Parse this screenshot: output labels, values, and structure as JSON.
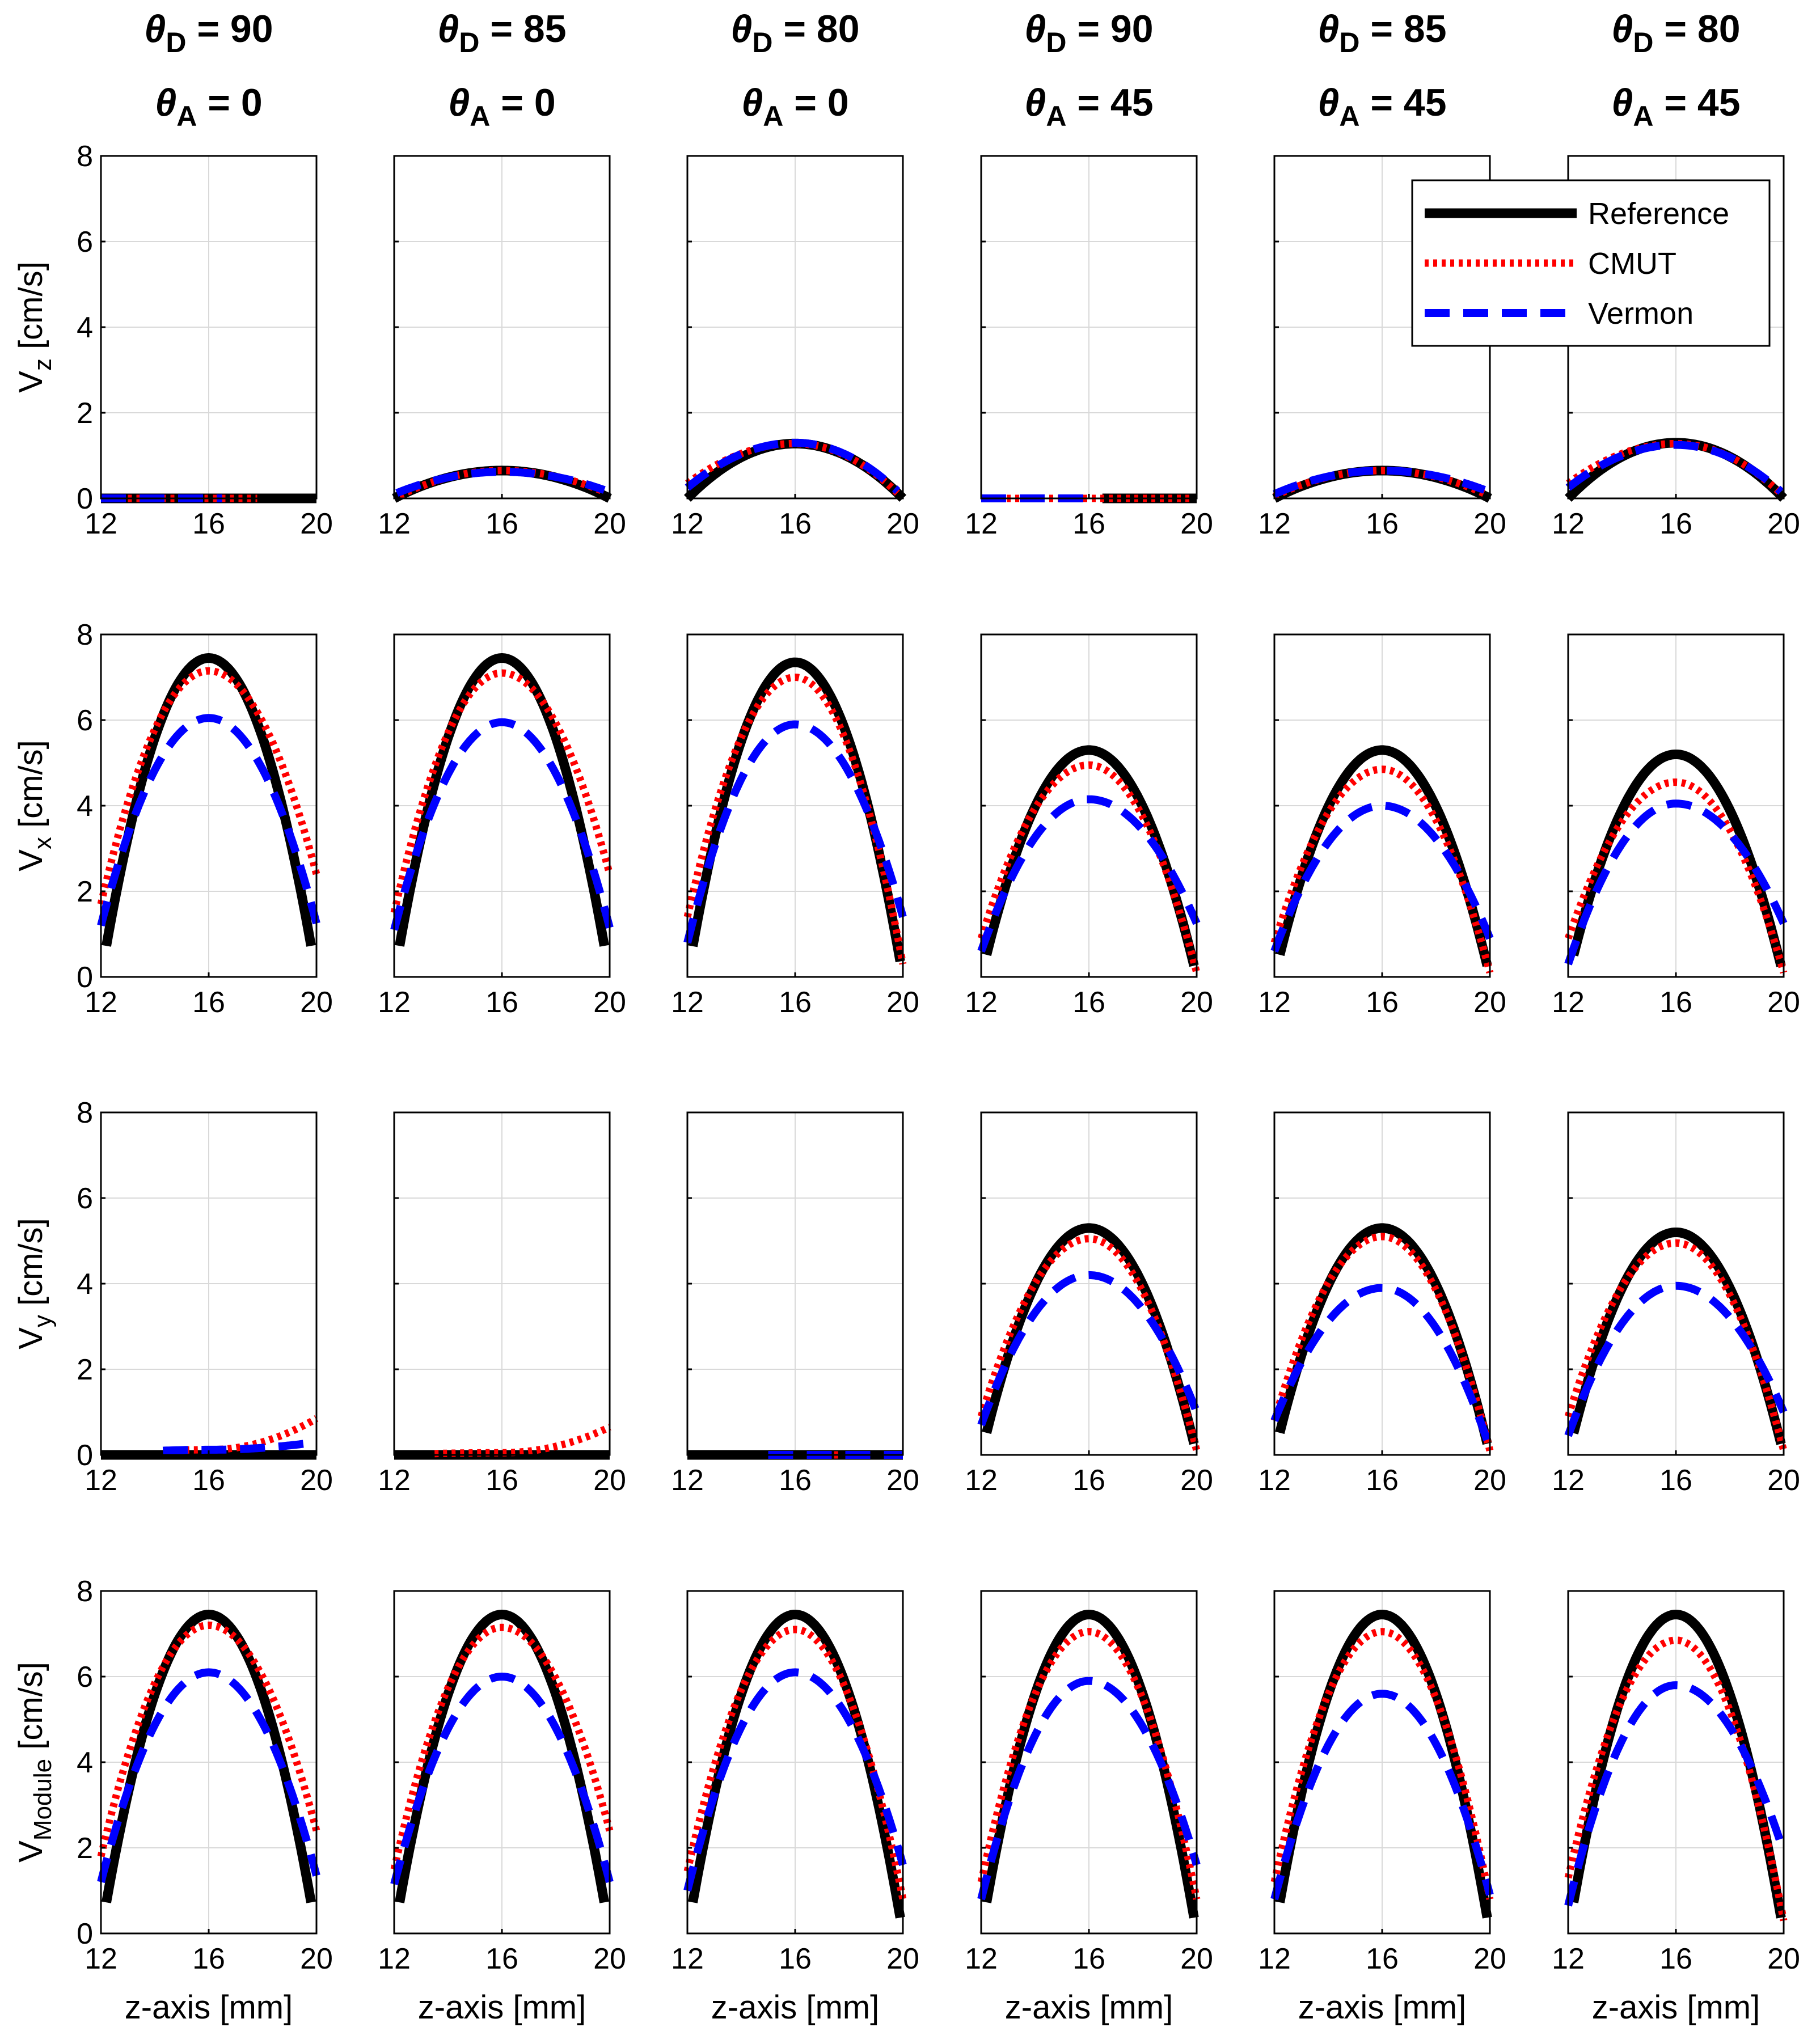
{
  "chart_data": {
    "type": "line",
    "layout": "4 rows x 6 columns of small-multiple line plots",
    "column_titles": [
      {
        "theta_D": "90",
        "theta_A": "0"
      },
      {
        "theta_D": "85",
        "theta_A": "0"
      },
      {
        "theta_D": "80",
        "theta_A": "0"
      },
      {
        "theta_D": "90",
        "theta_A": "45"
      },
      {
        "theta_D": "85",
        "theta_A": "45"
      },
      {
        "theta_D": "80",
        "theta_A": "45"
      }
    ],
    "title_symbols": {
      "theta": "θ",
      "D": "D",
      "A": "A",
      "eq": " = "
    },
    "row_ylabels": [
      {
        "main": "V",
        "sub": "z",
        "unit": " [cm/s]"
      },
      {
        "main": "V",
        "sub": "x",
        "unit": " [cm/s]"
      },
      {
        "main": "V",
        "sub": "y",
        "unit": " [cm/s]"
      },
      {
        "main": "V",
        "sub": "Module",
        "unit": " [cm/s]"
      }
    ],
    "xlabel": "z-axis [mm]",
    "xlim": [
      12,
      20
    ],
    "ylim": [
      0,
      8
    ],
    "xticks": [
      12,
      16,
      20
    ],
    "xtick_labels": [
      "12",
      "16",
      "20"
    ],
    "yticks": [
      0,
      2,
      4,
      6,
      8
    ],
    "ytick_labels": [
      "0",
      "2",
      "4",
      "6",
      "8"
    ],
    "grid": true,
    "legend": {
      "location": "top-right of row 1, column 6",
      "entries": [
        {
          "label": "Reference",
          "color": "#000000",
          "style": "solid"
        },
        {
          "label": "CMUT",
          "color": "#ff0000",
          "style": "dotted"
        },
        {
          "label": "Vermon",
          "color": "#0000ff",
          "style": "dashed"
        }
      ]
    },
    "colors": {
      "reference": "#000000",
      "cmut": "#ff0000",
      "vermon": "#0000ff",
      "grid": "#d9d9d9"
    },
    "series_model": "parabolic flow profiles: Reference v = peak*(1-((z-16)/4)^2); CMUT and Vermon estimated profiles shown with their peak and edge values",
    "panels": [
      [
        {
          "ref_peak": 0,
          "cmut": {
            "peak": 0,
            "left": 0,
            "right": 0
          },
          "vermon": {
            "peak": 0,
            "left": 0,
            "right": 0
          },
          "ref_range": [
            12.0,
            20.0
          ],
          "cmut_range": [
            13.0,
            17.8
          ],
          "vermon_range": [
            12.0,
            16.5
          ]
        },
        {
          "ref_peak": 0.65,
          "cmut": {
            "peak": 0.65,
            "left": 0.0,
            "right": 0.1
          },
          "vermon": {
            "peak": 0.62,
            "left": 0.1,
            "right": 0.15
          },
          "ref_range": [
            12.0,
            20.0
          ],
          "cmut_range": [
            12.2,
            19.7
          ],
          "vermon_range": [
            12.1,
            19.8
          ]
        },
        {
          "ref_peak": 1.28,
          "cmut": {
            "peak": 1.28,
            "left": 0.35,
            "right": 0.0
          },
          "vermon": {
            "peak": 1.3,
            "left": 0.25,
            "right": 0.05
          },
          "ref_range": [
            12.0,
            20.0
          ],
          "cmut_range": [
            12.0,
            19.8
          ],
          "vermon_range": [
            12.0,
            19.8
          ]
        },
        {
          "ref_peak": 0,
          "cmut": {
            "peak": 0,
            "left": 0,
            "right": 0
          },
          "vermon": {
            "peak": 0,
            "left": 0,
            "right": 0
          },
          "ref_range": [
            16.5,
            20.0
          ],
          "cmut_range": [
            12.0,
            19.8
          ],
          "vermon_range": [
            12.0,
            16.0
          ]
        },
        {
          "ref_peak": 0.65,
          "cmut": {
            "peak": 0.65,
            "left": 0.05,
            "right": 0.05
          },
          "vermon": {
            "peak": 0.65,
            "left": 0.1,
            "right": 0.15
          },
          "ref_range": [
            12.0,
            20.0
          ],
          "cmut_range": [
            12.0,
            19.8
          ],
          "vermon_range": [
            12.0,
            19.8
          ]
        },
        {
          "ref_peak": 1.3,
          "cmut": {
            "peak": 1.28,
            "left": 0.35,
            "right": 0.05
          },
          "vermon": {
            "peak": 1.25,
            "left": 0.25,
            "right": 0.1
          },
          "ref_range": [
            12.0,
            20.0
          ],
          "cmut_range": [
            12.0,
            19.9
          ],
          "vermon_range": [
            12.0,
            19.9
          ]
        }
      ],
      [
        {
          "ref_peak": 7.45,
          "cmut": {
            "peak": 7.15,
            "left": 1.7,
            "right": 2.4
          },
          "vermon": {
            "peak": 6.05,
            "left": 1.2,
            "right": 1.25
          },
          "ref_range": [
            12.2,
            19.8
          ],
          "cmut_range": [
            12.0,
            20.0
          ],
          "vermon_range": [
            12.0,
            20.0
          ]
        },
        {
          "ref_peak": 7.45,
          "cmut": {
            "peak": 7.1,
            "left": 1.5,
            "right": 2.4
          },
          "vermon": {
            "peak": 5.95,
            "left": 1.1,
            "right": 1.15
          },
          "ref_range": [
            12.2,
            19.8
          ],
          "cmut_range": [
            12.0,
            20.0
          ],
          "vermon_range": [
            12.0,
            20.0
          ]
        },
        {
          "ref_peak": 7.35,
          "cmut": {
            "peak": 7.0,
            "left": 1.4,
            "right": 0.3
          },
          "vermon": {
            "peak": 5.9,
            "left": 0.8,
            "right": 1.4
          },
          "ref_range": [
            12.2,
            19.9
          ],
          "cmut_range": [
            12.0,
            20.0
          ],
          "vermon_range": [
            12.0,
            20.0
          ]
        },
        {
          "ref_peak": 5.3,
          "cmut": {
            "peak": 4.95,
            "left": 0.9,
            "right": 0.1
          },
          "vermon": {
            "peak": 4.15,
            "left": 0.6,
            "right": 1.25
          },
          "ref_range": [
            12.2,
            19.9
          ],
          "cmut_range": [
            12.0,
            20.0
          ],
          "vermon_range": [
            12.0,
            20.0
          ]
        },
        {
          "ref_peak": 5.3,
          "cmut": {
            "peak": 4.85,
            "left": 0.8,
            "right": 0.1
          },
          "vermon": {
            "peak": 4.0,
            "left": 0.6,
            "right": 0.9
          },
          "ref_range": [
            12.2,
            19.9
          ],
          "cmut_range": [
            12.0,
            20.0
          ],
          "vermon_range": [
            12.0,
            20.0
          ]
        },
        {
          "ref_peak": 5.2,
          "cmut": {
            "peak": 4.55,
            "left": 0.9,
            "right": 0.1
          },
          "vermon": {
            "peak": 4.05,
            "left": 0.3,
            "right": 1.25
          },
          "ref_range": [
            12.2,
            19.9
          ],
          "cmut_range": [
            12.0,
            20.0
          ],
          "vermon_range": [
            12.0,
            20.0
          ]
        }
      ],
      [
        {
          "ref_peak": 0,
          "cmut": {
            "peak": 0.12,
            "left": 0.0,
            "right": 0.85
          },
          "vermon": {
            "peak": 0.12,
            "left": 0.0,
            "right": 0.3
          },
          "ref_range": [
            12.0,
            20.0
          ],
          "cmut_range": [
            14.5,
            20.0
          ],
          "vermon_range": [
            14.3,
            20.0
          ]
        },
        {
          "ref_peak": 0,
          "cmut": {
            "peak": 0.05,
            "left": 0.0,
            "right": 0.65
          },
          "vermon": {
            "peak": 0,
            "left": 0,
            "right": 0
          },
          "ref_range": [
            12.0,
            20.0
          ],
          "cmut_range": [
            13.5,
            20.0
          ],
          "vermon_range": [
            16.0,
            16.0
          ]
        },
        {
          "ref_peak": 0,
          "cmut": {
            "peak": 0,
            "left": 0,
            "right": 0
          },
          "vermon": {
            "peak": 0,
            "left": 0,
            "right": 0
          },
          "ref_range": [
            12.0,
            20.0
          ],
          "cmut_range": [
            16.5,
            17.6
          ],
          "vermon_range": [
            15.0,
            20.0
          ]
        },
        {
          "ref_peak": 5.3,
          "cmut": {
            "peak": 5.05,
            "left": 0.9,
            "right": 0.1
          },
          "vermon": {
            "peak": 4.2,
            "left": 0.7,
            "right": 1.0
          },
          "ref_range": [
            12.2,
            19.9
          ],
          "cmut_range": [
            12.0,
            20.0
          ],
          "vermon_range": [
            12.0,
            20.0
          ]
        },
        {
          "ref_peak": 5.3,
          "cmut": {
            "peak": 5.1,
            "left": 0.8,
            "right": 0.1
          },
          "vermon": {
            "peak": 3.9,
            "left": 0.8,
            "right": 0.15
          },
          "ref_range": [
            12.2,
            19.9
          ],
          "cmut_range": [
            12.0,
            20.0
          ],
          "vermon_range": [
            12.0,
            20.0
          ]
        },
        {
          "ref_peak": 5.2,
          "cmut": {
            "peak": 4.95,
            "left": 0.9,
            "right": 0.1
          },
          "vermon": {
            "peak": 3.95,
            "left": 0.45,
            "right": 1.0
          },
          "ref_range": [
            12.2,
            19.9
          ],
          "cmut_range": [
            12.0,
            20.0
          ],
          "vermon_range": [
            12.0,
            20.0
          ]
        }
      ],
      [
        {
          "ref_peak": 7.45,
          "cmut": {
            "peak": 7.2,
            "left": 1.8,
            "right": 2.4
          },
          "vermon": {
            "peak": 6.1,
            "left": 1.2,
            "right": 1.35
          },
          "ref_range": [
            12.2,
            19.8
          ],
          "cmut_range": [
            12.0,
            20.0
          ],
          "vermon_range": [
            12.0,
            20.0
          ]
        },
        {
          "ref_peak": 7.45,
          "cmut": {
            "peak": 7.15,
            "left": 1.5,
            "right": 2.4
          },
          "vermon": {
            "peak": 6.0,
            "left": 1.15,
            "right": 1.2
          },
          "ref_range": [
            12.2,
            19.8
          ],
          "cmut_range": [
            12.0,
            20.0
          ],
          "vermon_range": [
            12.0,
            20.0
          ]
        },
        {
          "ref_peak": 7.45,
          "cmut": {
            "peak": 7.1,
            "left": 1.45,
            "right": 0.8
          },
          "vermon": {
            "peak": 6.1,
            "left": 1.0,
            "right": 1.6
          },
          "ref_range": [
            12.2,
            19.9
          ],
          "cmut_range": [
            12.0,
            20.0
          ],
          "vermon_range": [
            12.0,
            20.0
          ]
        },
        {
          "ref_peak": 7.45,
          "cmut": {
            "peak": 7.05,
            "left": 1.2,
            "right": 0.8
          },
          "vermon": {
            "peak": 5.9,
            "left": 0.8,
            "right": 1.6
          },
          "ref_range": [
            12.2,
            19.9
          ],
          "cmut_range": [
            12.0,
            20.0
          ],
          "vermon_range": [
            12.0,
            20.0
          ]
        },
        {
          "ref_peak": 7.45,
          "cmut": {
            "peak": 7.05,
            "left": 1.2,
            "right": 0.8
          },
          "vermon": {
            "peak": 5.6,
            "left": 0.8,
            "right": 0.9
          },
          "ref_range": [
            12.2,
            19.9
          ],
          "cmut_range": [
            12.0,
            20.0
          ],
          "vermon_range": [
            12.0,
            20.0
          ]
        },
        {
          "ref_peak": 7.45,
          "cmut": {
            "peak": 6.85,
            "left": 1.3,
            "right": 0.3
          },
          "vermon": {
            "peak": 5.8,
            "left": 0.65,
            "right": 1.9
          },
          "ref_range": [
            12.2,
            19.9
          ],
          "cmut_range": [
            12.0,
            20.0
          ],
          "vermon_range": [
            12.0,
            20.0
          ]
        }
      ]
    ]
  }
}
